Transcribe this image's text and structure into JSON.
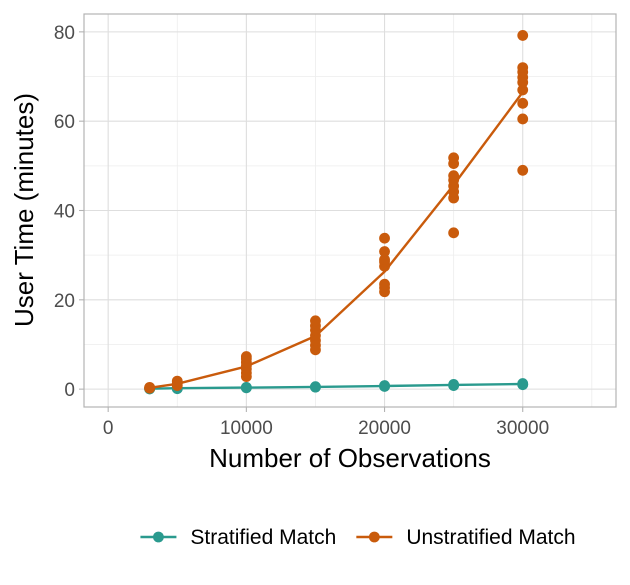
{
  "chart_data": {
    "type": "scatter",
    "xlabel": "Number of Observations",
    "ylabel": "User Time (minutes)",
    "xlim": [
      -1750,
      36750
    ],
    "ylim": [
      -4,
      84
    ],
    "x_ticks": [
      0,
      10000,
      20000,
      30000
    ],
    "x_tick_labels": [
      "0",
      "10000",
      "20000",
      "30000"
    ],
    "y_ticks": [
      0,
      20,
      40,
      60,
      80
    ],
    "y_tick_labels": [
      "0",
      "20",
      "40",
      "60",
      "80"
    ],
    "x_minor_ticks": [
      5000,
      15000,
      25000,
      35000
    ],
    "y_minor_ticks": [
      10,
      30,
      50,
      70
    ],
    "grid": true,
    "legend_position": "bottom",
    "series": [
      {
        "name": "Stratified Match",
        "color": "#2a9a8e",
        "points": [
          [
            3000,
            0.05
          ],
          [
            3000,
            0.1
          ],
          [
            3000,
            0.15
          ],
          [
            5000,
            0.1
          ],
          [
            5000,
            0.2
          ],
          [
            5000,
            0.25
          ],
          [
            10000,
            0.3
          ],
          [
            10000,
            0.35
          ],
          [
            10000,
            0.4
          ],
          [
            15000,
            0.45
          ],
          [
            15000,
            0.5
          ],
          [
            15000,
            0.55
          ],
          [
            20000,
            0.6
          ],
          [
            20000,
            0.7
          ],
          [
            20000,
            0.8
          ],
          [
            25000,
            0.8
          ],
          [
            25000,
            0.95
          ],
          [
            25000,
            1.05
          ],
          [
            30000,
            1.0
          ],
          [
            30000,
            1.1
          ],
          [
            30000,
            1.25
          ]
        ],
        "line": [
          [
            3000,
            0.1
          ],
          [
            5000,
            0.2
          ],
          [
            10000,
            0.35
          ],
          [
            15000,
            0.5
          ],
          [
            20000,
            0.7
          ],
          [
            25000,
            0.95
          ],
          [
            30000,
            1.15
          ]
        ]
      },
      {
        "name": "Unstratified Match",
        "color": "#c95b0c",
        "points": [
          [
            3000,
            0.2
          ],
          [
            3000,
            0.4
          ],
          [
            3000,
            0.3
          ],
          [
            5000,
            0.8
          ],
          [
            5000,
            1.3
          ],
          [
            5000,
            1.8
          ],
          [
            10000,
            2.8
          ],
          [
            10000,
            3.6
          ],
          [
            10000,
            4.5
          ],
          [
            10000,
            5.2
          ],
          [
            10000,
            6.0
          ],
          [
            10000,
            6.8
          ],
          [
            10000,
            7.3
          ],
          [
            15000,
            8.8
          ],
          [
            15000,
            9.8
          ],
          [
            15000,
            10.9
          ],
          [
            15000,
            12.0
          ],
          [
            15000,
            13.2
          ],
          [
            15000,
            14.2
          ],
          [
            15000,
            15.3
          ],
          [
            20000,
            21.8
          ],
          [
            20000,
            22.7
          ],
          [
            20000,
            23.5
          ],
          [
            20000,
            27.5
          ],
          [
            20000,
            28.5
          ],
          [
            20000,
            29.0
          ],
          [
            20000,
            30.8
          ],
          [
            20000,
            33.8
          ],
          [
            25000,
            35.0
          ],
          [
            25000,
            42.8
          ],
          [
            25000,
            44.2
          ],
          [
            25000,
            45.5
          ],
          [
            25000,
            46.8
          ],
          [
            25000,
            47.8
          ],
          [
            25000,
            50.5
          ],
          [
            25000,
            51.8
          ],
          [
            30000,
            49.0
          ],
          [
            30000,
            60.5
          ],
          [
            30000,
            64.0
          ],
          [
            30000,
            67.0
          ],
          [
            30000,
            68.7
          ],
          [
            30000,
            69.8
          ],
          [
            30000,
            71.0
          ],
          [
            30000,
            72.0
          ],
          [
            30000,
            79.2
          ]
        ],
        "line": [
          [
            3000,
            0.3
          ],
          [
            5000,
            1.2
          ],
          [
            10000,
            5.1
          ],
          [
            15000,
            11.9
          ],
          [
            20000,
            26.3
          ],
          [
            25000,
            45.7
          ],
          [
            30000,
            66.5
          ]
        ]
      }
    ]
  }
}
